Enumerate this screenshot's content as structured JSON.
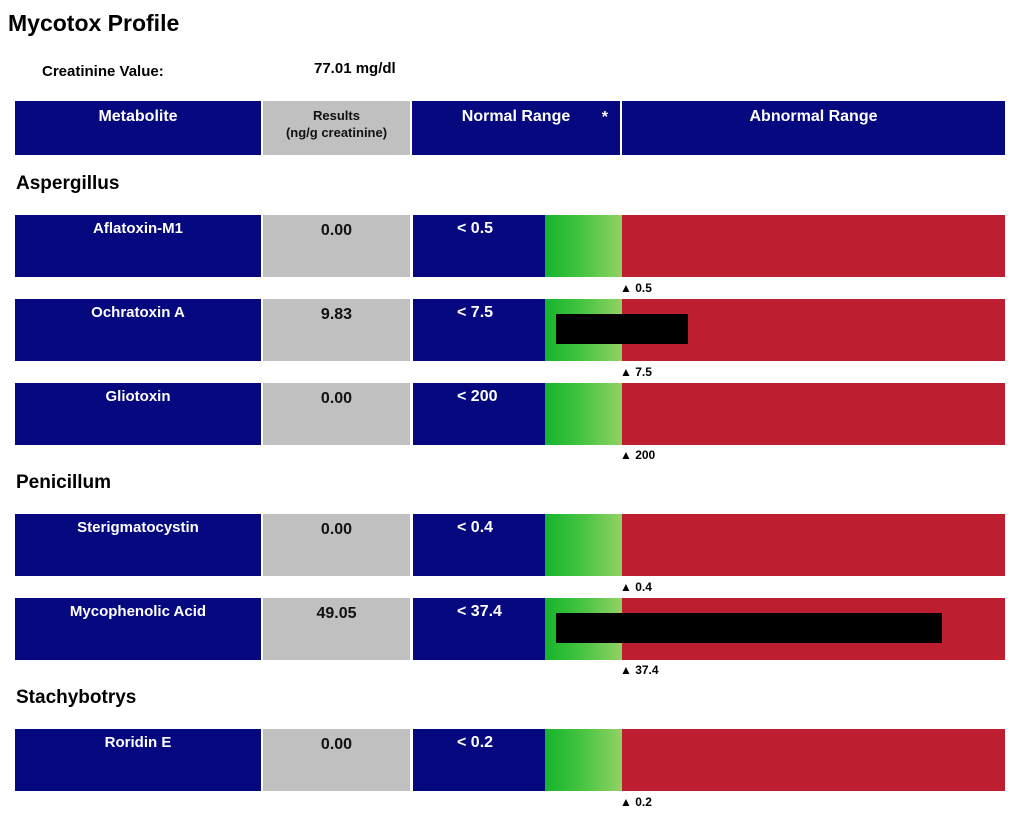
{
  "title": "Mycotox Profile",
  "creatinine": {
    "label": "Creatinine Value:",
    "value": "77.01 mg/dl"
  },
  "header": {
    "metabolite": "Metabolite",
    "results_line1": "Results",
    "results_line2": "(ng/g creatinine)",
    "normal": "Normal Range",
    "star": "*",
    "abnormal": "Abnormal Range"
  },
  "colors": {
    "header_blue": "#05087f",
    "result_gray": "#c0c0c0",
    "abnormal_red": "#bd1f31",
    "normal_green": "#4cc244",
    "result_bar": "#000000"
  },
  "sections": [
    {
      "name": "Aspergillus",
      "rows": [
        {
          "name": "Aflatoxin-M1",
          "result": "0.00",
          "range": "< 0.5",
          "marker": "▲ 0.5"
        },
        {
          "name": "Ochratoxin A",
          "result": "9.83",
          "range": "< 7.5",
          "marker": "▲ 7.5"
        },
        {
          "name": "Gliotoxin",
          "result": "0.00",
          "range": "< 200",
          "marker": "▲ 200"
        }
      ]
    },
    {
      "name": "Penicillum",
      "rows": [
        {
          "name": "Sterigmatocystin",
          "result": "0.00",
          "range": "< 0.4",
          "marker": "▲ 0.4"
        },
        {
          "name": "Mycophenolic Acid",
          "result": "49.05",
          "range": "< 37.4",
          "marker": "▲ 37.4"
        }
      ]
    },
    {
      "name": "Stachybotrys",
      "rows": [
        {
          "name": "Roridin E",
          "result": "0.00",
          "range": "< 0.2",
          "marker": "▲ 0.2"
        }
      ]
    }
  ]
}
